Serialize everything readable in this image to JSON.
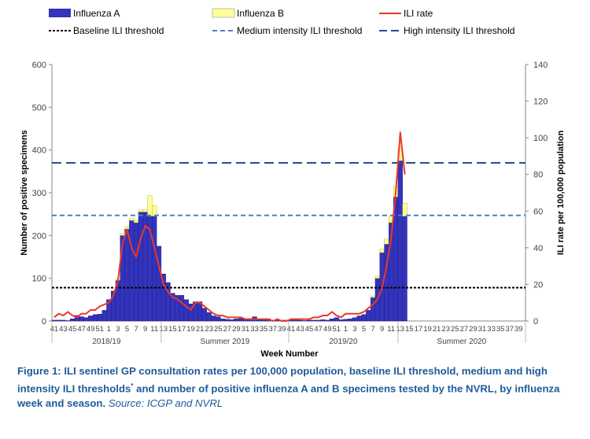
{
  "chart_data": {
    "type": "bar+line",
    "legend": [
      {
        "key": "flu_a",
        "label": "Influenza A",
        "kind": "bar",
        "color": "#3333bb"
      },
      {
        "key": "flu_b",
        "label": "Influenza B",
        "kind": "bar",
        "color": "#ffff99"
      },
      {
        "key": "ili",
        "label": "ILI rate",
        "kind": "line",
        "color": "#e8392a"
      },
      {
        "key": "baseline",
        "label": "Baseline ILI threshold",
        "kind": "dotted",
        "color": "#000000"
      },
      {
        "key": "medium",
        "label": "Medium intensity ILI threshold",
        "kind": "dashed",
        "color": "#4f7fc8"
      },
      {
        "key": "high",
        "label": "High intensity ILI threshold",
        "kind": "longdash",
        "color": "#1f4e9a"
      }
    ],
    "x_title": "Week Number",
    "y_left_title": "Number of positive specimens",
    "y_right_title": "ILI rate per 100,000 population",
    "y_left_ticks": [
      0,
      100,
      200,
      300,
      400,
      500,
      600
    ],
    "y_right_ticks": [
      0,
      20,
      40,
      60,
      80,
      100,
      120,
      140
    ],
    "y_left_range": [
      0,
      600
    ],
    "y_right_range": [
      0,
      140
    ],
    "week_labels": [
      "41",
      "43",
      "45",
      "47",
      "49",
      "51",
      "1",
      "3",
      "5",
      "7",
      "9",
      "11",
      "13",
      "15",
      "17",
      "19",
      "21",
      "23",
      "25",
      "27",
      "29",
      "31",
      "33",
      "35",
      "37",
      "39",
      "41",
      "43",
      "45",
      "47",
      "49",
      "51",
      "1",
      "3",
      "5",
      "7",
      "9",
      "11",
      "13",
      "15",
      "17",
      "19",
      "21",
      "23",
      "25",
      "27",
      "29",
      "31",
      "33",
      "35",
      "37",
      "39"
    ],
    "week_labels_text": [
      "41434547495",
      "1",
      "1  3  5  7  9",
      "11131517192",
      "12325272931",
      "33353739",
      "41434547495",
      "1",
      "1  3  5  7  9",
      "11131517192",
      "12325272931",
      "33353739"
    ],
    "seasons": [
      {
        "label": "2018/19",
        "start": 0,
        "end": 24
      },
      {
        "label": "Summer 2019",
        "start": 24,
        "end": 52
      },
      {
        "label": "2019/20",
        "start": 52,
        "end": 76
      },
      {
        "label": "Summer 2020",
        "start": 76,
        "end": 104
      }
    ],
    "flu_a": [
      2,
      2,
      2,
      1,
      5,
      13,
      10,
      8,
      12,
      15,
      16,
      25,
      50,
      70,
      95,
      200,
      215,
      235,
      230,
      255,
      255,
      245,
      245,
      175,
      110,
      90,
      65,
      60,
      60,
      50,
      40,
      45,
      45,
      30,
      20,
      12,
      10,
      5,
      4,
      3,
      5,
      6,
      4,
      3,
      10,
      3,
      3,
      5,
      2,
      2,
      2,
      2,
      3,
      5,
      2,
      1,
      2,
      2,
      2,
      3,
      2,
      5,
      8,
      3,
      4,
      5,
      8,
      12,
      15,
      25,
      55,
      100,
      160,
      180,
      230,
      290,
      375,
      245,
      0,
      0,
      0,
      0,
      0,
      0,
      0,
      0,
      0,
      0,
      0,
      0,
      0,
      0,
      0,
      0,
      0,
      0,
      0,
      0,
      0,
      0,
      0,
      0,
      0,
      0
    ],
    "flu_b": [
      0,
      0,
      0,
      0,
      0,
      0,
      0,
      0,
      0,
      0,
      0,
      0,
      0,
      0,
      3,
      5,
      5,
      5,
      5,
      5,
      5,
      48,
      25,
      0,
      0,
      0,
      0,
      0,
      0,
      0,
      0,
      0,
      0,
      0,
      0,
      0,
      0,
      0,
      0,
      0,
      0,
      0,
      0,
      0,
      0,
      0,
      0,
      0,
      0,
      0,
      0,
      0,
      0,
      0,
      0,
      0,
      0,
      0,
      0,
      0,
      0,
      0,
      0,
      0,
      0,
      0,
      0,
      0,
      0,
      0,
      3,
      5,
      8,
      12,
      15,
      25,
      30,
      30,
      0,
      0,
      0,
      0,
      0,
      0,
      0,
      0,
      0,
      0,
      0,
      0,
      0,
      0,
      0,
      0,
      0,
      0,
      0,
      0,
      0,
      0,
      0,
      0,
      0,
      0
    ],
    "ili": [
      2,
      4,
      3,
      5,
      3,
      2,
      4,
      4,
      6,
      6,
      8,
      9,
      10,
      14,
      22,
      42,
      50,
      40,
      35,
      45,
      52,
      50,
      40,
      30,
      20,
      16,
      13,
      12,
      10,
      8,
      6,
      10,
      10,
      8,
      6,
      4,
      3,
      3,
      2,
      2,
      2,
      2,
      1,
      1,
      1,
      1,
      1,
      1,
      0,
      1,
      0,
      0,
      1,
      1,
      1,
      1,
      1,
      2,
      2,
      3,
      3,
      5,
      3,
      2,
      4,
      4,
      4,
      4,
      5,
      7,
      9,
      12,
      18,
      30,
      45,
      70,
      103,
      80,
      null,
      null,
      null,
      null,
      null,
      null,
      null,
      null,
      null,
      null,
      null,
      null,
      null,
      null,
      null,
      null,
      null,
      null,
      null,
      null,
      null,
      null,
      null,
      null,
      null,
      null
    ],
    "baseline_threshold_left": 78,
    "medium_threshold_left": 247,
    "high_threshold_left": 370,
    "annotations": []
  },
  "caption": {
    "main": "Figure 1: ILI sentinel GP consultation rates per 100,000 population, baseline ILI threshold, medium and high intensity ILI thresholds",
    "sup": "*",
    "rest": " and number of positive influenza A and B specimens tested by the NVRL, by influenza week and season.",
    "source": "Source: ICGP and NVRL"
  }
}
